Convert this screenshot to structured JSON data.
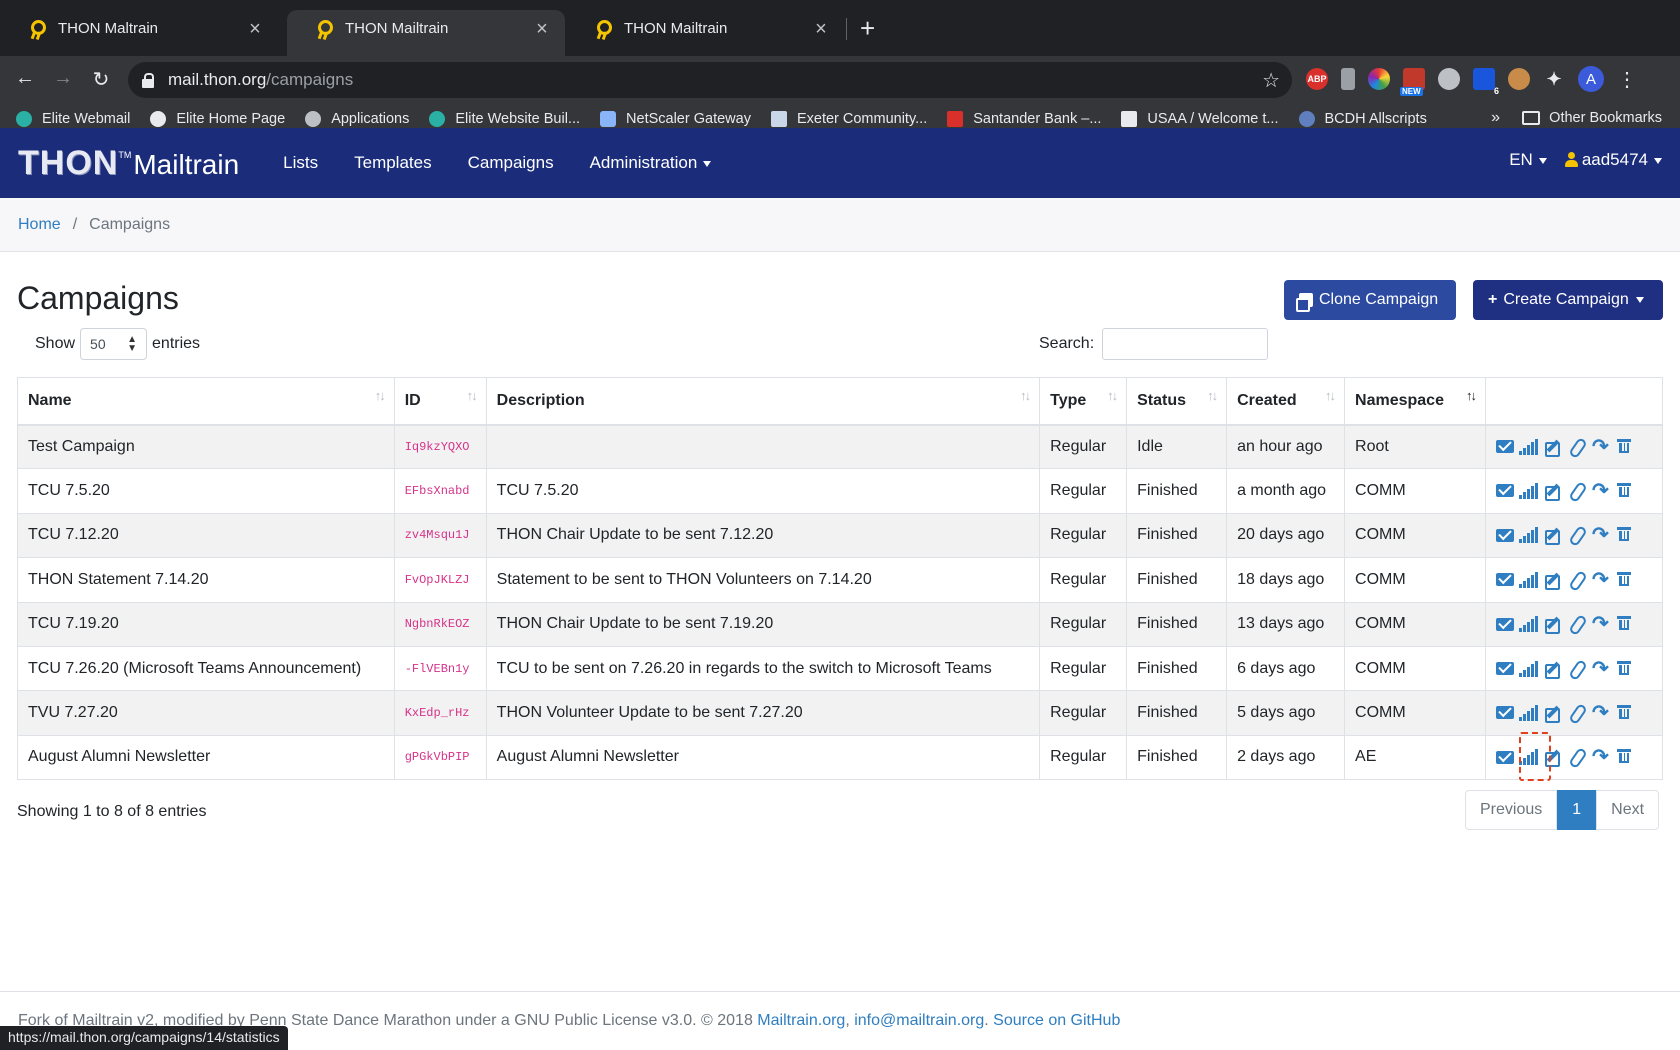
{
  "browser": {
    "tabs": [
      {
        "title": "THON Maltrain",
        "active": false
      },
      {
        "title": "THON Mailtrain",
        "active": true
      },
      {
        "title": "THON Mailtrain",
        "active": false
      }
    ],
    "url_host": "mail.thon.org",
    "url_path": "/campaigns",
    "bookmarks": [
      "Elite Webmail",
      "Elite Home Page",
      "Applications",
      "Elite Website Buil...",
      "NetScaler Gateway",
      "Exeter Community...",
      "Santander Bank –...",
      "USAA / Welcome t...",
      "BCDH Allscripts"
    ],
    "bookmarks_more": "»",
    "other_bookmarks": "Other Bookmarks",
    "extensions": [
      "ABP",
      "NEW",
      "6"
    ],
    "profile_initial": "A"
  },
  "nav": {
    "brand_thon": "THON",
    "brand_tm": "TM",
    "brand_mail": "Mailtrain",
    "links": [
      "Lists",
      "Templates",
      "Campaigns",
      "Administration"
    ],
    "lang": "EN",
    "user": "aad5474"
  },
  "breadcrumb": {
    "home": "Home",
    "current": "Campaigns"
  },
  "page": {
    "title": "Campaigns",
    "clone_button": "Clone Campaign",
    "create_button": "Create Campaign",
    "show_label": "Show",
    "entries_value": "50",
    "entries_label": "entries",
    "search_label": "Search:"
  },
  "table": {
    "columns": [
      "Name",
      "ID",
      "Description",
      "Type",
      "Status",
      "Created",
      "Namespace"
    ],
    "rows": [
      {
        "name": "Test Campaign",
        "id": "Iq9kzYQXO",
        "description": "",
        "type": "Regular",
        "status": "Idle",
        "created": "an hour ago",
        "namespace": "Root"
      },
      {
        "name": "TCU 7.5.20",
        "id": "EFbsXnabd",
        "description": "TCU 7.5.20",
        "type": "Regular",
        "status": "Finished",
        "created": "a month ago",
        "namespace": "COMM"
      },
      {
        "name": "TCU 7.12.20",
        "id": "zv4Msqu1J",
        "description": "THON Chair Update to be sent 7.12.20",
        "type": "Regular",
        "status": "Finished",
        "created": "20 days ago",
        "namespace": "COMM"
      },
      {
        "name": "THON Statement 7.14.20",
        "id": "FvOpJKLZJ",
        "description": "Statement to be sent to THON Volunteers on 7.14.20",
        "type": "Regular",
        "status": "Finished",
        "created": "18 days ago",
        "namespace": "COMM"
      },
      {
        "name": "TCU 7.19.20",
        "id": "NgbnRkEOZ",
        "description": "THON Chair Update to be sent 7.19.20",
        "type": "Regular",
        "status": "Finished",
        "created": "13 days ago",
        "namespace": "COMM"
      },
      {
        "name": "TCU 7.26.20 (Microsoft Teams Announcement)",
        "id": "-FlVEBn1y",
        "description": "TCU to be sent on 7.26.20 in regards to the switch to Microsoft Teams",
        "type": "Regular",
        "status": "Finished",
        "created": "6 days ago",
        "namespace": "COMM"
      },
      {
        "name": "TVU 7.27.20",
        "id": "KxEdp_rHz",
        "description": "THON Volunteer Update to be sent 7.27.20",
        "type": "Regular",
        "status": "Finished",
        "created": "5 days ago",
        "namespace": "COMM"
      },
      {
        "name": "August Alumni Newsletter",
        "id": "gPGkVbPIP",
        "description": "August Alumni Newsletter",
        "type": "Regular",
        "status": "Finished",
        "created": "2 days ago",
        "namespace": "AE"
      }
    ],
    "action_icons": [
      "envelope-icon",
      "statistics-icon",
      "edit-icon",
      "attachment-icon",
      "share-icon",
      "delete-icon"
    ]
  },
  "pagination": {
    "info": "Showing 1 to 8 of 8 entries",
    "previous": "Previous",
    "current": "1",
    "next": "Next"
  },
  "footer": {
    "text": "Fork of Mailtrain v2, modified by Penn State Dance Marathon under a GNU Public License v3.0. © 2018 ",
    "link1": "Mailtrain.org",
    "sep1": ", ",
    "link2": "info@mailtrain.org",
    "sep2": ". ",
    "link3": "Source on GitHub"
  },
  "status_url": "https://mail.thon.org/campaigns/14/statistics",
  "colors": {
    "navbar": "#1a2c7a",
    "link": "#2f7ec1",
    "id_text": "#d6338a",
    "highlight": "#e0401d"
  }
}
